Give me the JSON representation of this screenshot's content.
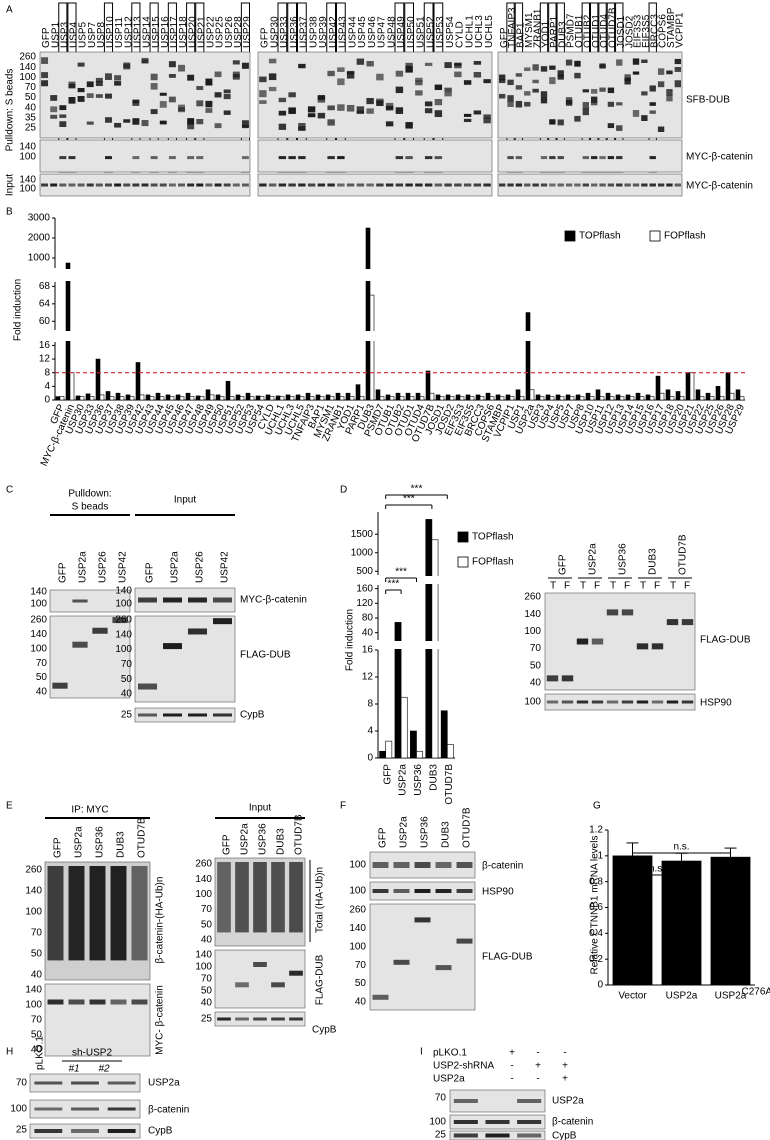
{
  "panel_labels": [
    "A",
    "B",
    "C",
    "D",
    "E",
    "F",
    "G",
    "H",
    "I"
  ],
  "panels": {
    "A": {
      "pulldown": "Pulldown: S beads",
      "input": "Input",
      "lanes": [
        [
          "GFP",
          "USP1",
          "USP3",
          "USP4",
          "USP5",
          "USP7",
          "USP8",
          "USP10",
          "USP11",
          "USP12",
          "USP13",
          "USP14",
          "USP15",
          "USP16",
          "USP17",
          "USP18",
          "USP20",
          "USP21",
          "USP22",
          "USP25",
          "USP26",
          "USP28",
          "USP29"
        ],
        [
          "GFP",
          "USP30",
          "USP33",
          "USP36",
          "USP37",
          "USP38",
          "USP39",
          "USP42",
          "USP43",
          "USP44",
          "USP45",
          "USP46",
          "USP47",
          "USP48",
          "USP49",
          "USP50",
          "USP51",
          "USP52",
          "USP53",
          "USP54",
          "CYLD",
          "UCHL1",
          "UCHL3",
          "UCHL5"
        ],
        [
          "GFP",
          "TNFAIP3",
          "BAP1",
          "MYSM1",
          "ZRANB1",
          "YOD1",
          "PARP1",
          "DUB3",
          "PSMD7",
          "OTUB1",
          "OTUB2",
          "OTUD1",
          "OTUD4",
          "OTUD7B",
          "JOSD1",
          "JOSD2",
          "EIF3S3",
          "EIF3S5",
          "BRCC3",
          "COPS6",
          "STAMBP",
          "VCPIP1"
        ]
      ],
      "highlighted": [
        "USP3",
        "USP4",
        "USP10",
        "USP13",
        "USP15",
        "USP17",
        "USP20",
        "USP21",
        "USP29",
        "USP33",
        "USP36",
        "USP37",
        "USP42",
        "USP43",
        "USP49",
        "USP50",
        "USP52",
        "USP53",
        "TNFAIP3",
        "BAP1",
        "YOD1",
        "PARP1",
        "DUB3",
        "OTUB2",
        "OTUD1",
        "OTUD4",
        "OTUD7B",
        "JOSD1",
        "BRCC3"
      ],
      "highlight_color": "#d62728",
      "mw": [
        [
          260,
          140,
          100,
          70,
          50,
          40,
          35,
          25
        ],
        [
          140,
          100
        ],
        [
          140,
          100
        ]
      ],
      "blots": [
        "SFB-DUB",
        "MYC-β-catenin",
        "MYC-β-catenin"
      ]
    },
    "C": {
      "pulldown": [
        "Pulldown:",
        "S beads"
      ],
      "input": "Input",
      "lanes": [
        "GFP",
        "USP2a",
        "USP26",
        "USP42"
      ],
      "mw_left": [
        [
          140,
          100
        ],
        [
          260,
          140,
          100,
          70,
          50,
          40
        ]
      ],
      "mw_right": [
        [
          140,
          100
        ],
        [
          260,
          140,
          100,
          70,
          50,
          40
        ],
        [
          25
        ]
      ],
      "blots": [
        "MYC-β-catenin",
        "FLAG-DUB",
        "CypB"
      ]
    },
    "D": {
      "lanes": [
        "GFP",
        "USP2a",
        "USP36",
        "DUB3",
        "OTUD7B"
      ],
      "lane_sub": [
        "T",
        "F"
      ],
      "mw": [
        [
          260,
          140,
          100,
          70,
          50,
          40
        ],
        [
          100
        ]
      ],
      "blots": [
        "FLAG-DUB",
        "HSP90"
      ]
    },
    "E": {
      "ip": "IP: MYC",
      "input": "Input",
      "lanes": [
        "GFP",
        "USP2a",
        "USP36",
        "DUB3",
        "OTUD7B"
      ],
      "mw_ip": [
        [
          260,
          140,
          100,
          70,
          50,
          40
        ],
        [
          140,
          100,
          70,
          50,
          40
        ]
      ],
      "ip_blots": [
        "β-catenin-(HA-Ub)n",
        "MYC- β-catenin"
      ],
      "mw_input": [
        [
          260,
          140,
          100,
          70,
          50,
          40
        ],
        [
          140,
          100,
          70,
          50,
          40
        ],
        [
          25
        ]
      ],
      "input_blots": [
        "Total (HA-Ub)n",
        "FLAG-DUB",
        "CypB"
      ]
    },
    "F": {
      "lanes": [
        "GFP",
        "USP2a",
        "USP36",
        "DUB3",
        "OTUD7B"
      ],
      "mw": [
        [
          100
        ],
        [
          100
        ],
        [
          260,
          140,
          100,
          70,
          50,
          40
        ]
      ],
      "blots": [
        "β-catenin",
        "HSP90",
        "FLAG-DUB"
      ]
    },
    "H": {
      "control": "pLKO.1",
      "group": "sh-USP2",
      "clones": [
        "#1",
        "#2"
      ],
      "mw": [
        [
          70
        ],
        [
          100
        ],
        [
          25
        ]
      ],
      "blots": [
        "USP2a",
        "β-catenin",
        "CypB"
      ]
    },
    "I": {
      "rows": [
        {
          "name": "pLKO.1",
          "signs": [
            "+",
            "-",
            "-"
          ]
        },
        {
          "name": "USP2-shRNA",
          "signs": [
            "-",
            "+",
            "+"
          ]
        },
        {
          "name": "USP2a",
          "signs": [
            "-",
            "-",
            "+"
          ]
        }
      ],
      "mw": [
        [
          70
        ],
        [
          100
        ],
        [
          25
        ]
      ],
      "blots": [
        "USP2a",
        "β-catenin",
        "CypB"
      ]
    }
  },
  "chart_data": [
    {
      "type": "bar",
      "y_label": "Fold induction",
      "categories": [
        "GFP",
        "MYC-β-catenin",
        "USP30",
        "USP33",
        "USP36",
        "USP37",
        "USP38",
        "USP39",
        "USP42",
        "USP43",
        "USP44",
        "USP45",
        "USP46",
        "USP47",
        "USP48",
        "USP49",
        "USP50",
        "USP51",
        "USP52",
        "USP53",
        "USP54",
        "CYLD",
        "UCHL1",
        "UCHL3",
        "UCHL5",
        "TNFAIP3",
        "BAP1",
        "MYSM1",
        "ZRANB1",
        "YOD1",
        "PARP1",
        "DUB3",
        "PSMD7",
        "OTUB1",
        "OTUB2",
        "OTUD1",
        "OTUD4",
        "OTUD7B",
        "JOSD1",
        "JOSD2",
        "EIF3S3",
        "EIF3S5",
        "BRCC3",
        "COPS6",
        "STAMBP",
        "VCPIP1",
        "USP1",
        "USP2a",
        "USP3",
        "USP4",
        "USP5",
        "USP7",
        "USP8",
        "USP10",
        "USP11",
        "USP12",
        "USP13",
        "USP14",
        "USP15",
        "USP16",
        "USP17",
        "USP18",
        "USP20",
        "USP21",
        "USP22",
        "USP25",
        "USP26",
        "USP28",
        "USP29"
      ],
      "highlighted": [
        "USP36",
        "USP42",
        "DUB3",
        "OTUD4",
        "OTUD7B",
        "USP2a",
        "USP28"
      ],
      "highlight_color": "#d62728",
      "series": [
        {
          "name": "TOPflash",
          "color": "#000000",
          "values": [
            1,
            750,
            1.2,
            1.8,
            12,
            2.5,
            2,
            1.5,
            11,
            1.5,
            2,
            1.5,
            1.5,
            2,
            1.2,
            3,
            1.5,
            5.5,
            1.5,
            2,
            1.2,
            1.5,
            1.2,
            1.5,
            1.5,
            2,
            1.5,
            1.5,
            2,
            2,
            4.5,
            2500,
            3,
            1.5,
            2,
            2,
            2,
            8.5,
            1.5,
            1.5,
            1.5,
            1.5,
            1.5,
            2,
            1.5,
            1.5,
            3,
            62,
            1.5,
            1.5,
            1.5,
            1.5,
            1.5,
            2,
            3,
            2,
            1.5,
            1.5,
            2,
            1.5,
            7,
            3,
            2.5,
            8,
            3,
            2,
            4,
            8,
            3
          ]
        },
        {
          "name": "FOPflash",
          "color": "#ffffff",
          "values": [
            1,
            8,
            1,
            1,
            1.5,
            1,
            1,
            1,
            1.5,
            1,
            1,
            1,
            1,
            1,
            1,
            1.5,
            1,
            1,
            1,
            1,
            1,
            1,
            1,
            1,
            1,
            1,
            1,
            1,
            1,
            1,
            1,
            66,
            1,
            1,
            1,
            1,
            1,
            2,
            1,
            1,
            1,
            1,
            1,
            1,
            1,
            1,
            1,
            3,
            1,
            1,
            1,
            1,
            1,
            1,
            1,
            1,
            1,
            1,
            1,
            1,
            2,
            1,
            1,
            8,
            1,
            1,
            1,
            2,
            1
          ]
        }
      ],
      "ylim_segments": [
        [
          0,
          17
        ],
        [
          58,
          69
        ],
        [
          500,
          3000
        ]
      ],
      "yticks": [
        0,
        4,
        8,
        12,
        16,
        60,
        64,
        68,
        1000,
        2000,
        3000
      ],
      "threshold": {
        "value": 8,
        "color": "#d62728"
      },
      "legend": "top-right"
    },
    {
      "type": "bar",
      "y_label": "Fold induction",
      "categories": [
        "GFP",
        "USP2a",
        "USP36",
        "DUB3",
        "OTUD7B"
      ],
      "series": [
        {
          "name": "TOPflash",
          "color": "#000000",
          "values": [
            1,
            68,
            4,
            1900,
            7
          ]
        },
        {
          "name": "FOPflash",
          "color": "#ffffff",
          "values": [
            2.5,
            9,
            1,
            1350,
            2
          ]
        }
      ],
      "ylim_segments": [
        [
          0,
          16
        ],
        [
          20,
          170
        ],
        [
          400,
          2100
        ]
      ],
      "yticks": [
        0,
        4,
        8,
        12,
        16,
        40,
        80,
        120,
        160,
        500,
        1000,
        1500
      ],
      "significance": [
        {
          "from": 0,
          "to": 4,
          "label": "***"
        },
        {
          "from": 0,
          "to": 3,
          "label": "***"
        },
        {
          "from": 0,
          "to": 2,
          "label": "***"
        },
        {
          "from": 0,
          "to": 1,
          "label": "***"
        }
      ],
      "legend": "right"
    },
    {
      "type": "bar",
      "y_label": "Relative CTNNB1 mRNA levels",
      "categories": [
        "Vector",
        "USP2a",
        "USP2a"
      ],
      "category_superscripts": [
        null,
        null,
        "C276A"
      ],
      "values": [
        1,
        0.96,
        0.99
      ],
      "errors": [
        0.1,
        0.06,
        0.07
      ],
      "color": "#000000",
      "ylim": [
        0,
        1.2
      ],
      "yticks": [
        0,
        0.2,
        0.4,
        0.6,
        0.8,
        1,
        1.2
      ],
      "significance": [
        {
          "from": 0,
          "to": 1,
          "label": "n.s."
        },
        {
          "from": 0,
          "to": 2,
          "label": "n.s."
        }
      ]
    }
  ]
}
